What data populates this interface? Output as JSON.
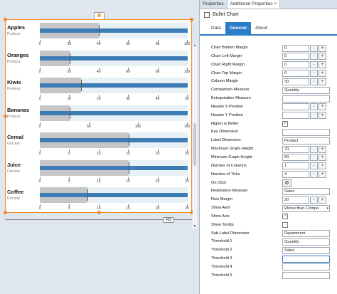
{
  "canvas": {
    "top_icon": "chart-icon",
    "ruler_label": "483",
    "chart_data": {
      "type": "bullet",
      "rows": [
        {
          "name": "Apples",
          "sub": "Produce",
          "max": 100,
          "ticks": [
            "0",
            "20",
            "40",
            "60",
            "80",
            "100"
          ],
          "band": 40,
          "perf": 100,
          "target": 40
        },
        {
          "name": "Oranges",
          "sub": "Produce",
          "max": 100,
          "ticks": [
            "0",
            "20",
            "40",
            "60",
            "80",
            "100"
          ],
          "band": 20,
          "perf": 100,
          "target": 20
        },
        {
          "name": "Kiwis",
          "sub": "Produce",
          "max": 50,
          "ticks": [
            "0",
            "10",
            "20",
            "30",
            "40",
            "50"
          ],
          "band": 14,
          "perf": 50,
          "target": 14
        },
        {
          "name": "Bananas",
          "sub": "Produce",
          "max": 150,
          "ticks": [
            "0",
            "50",
            "100",
            "150"
          ],
          "band": 30,
          "perf": 150,
          "target": 30
        },
        {
          "name": "Cereal",
          "sub": "Grocery",
          "max": 25,
          "ticks": [
            "0",
            "5",
            "10",
            "15",
            "20",
            "25"
          ],
          "band": 15,
          "perf": 25,
          "target": 15
        },
        {
          "name": "Juice",
          "sub": "Grocery",
          "max": 25,
          "ticks": [
            "0",
            "5",
            "10",
            "15",
            "20",
            "25"
          ],
          "band": 15,
          "perf": 25,
          "target": 15
        },
        {
          "name": "Coffee",
          "sub": "Grocery",
          "max": 25,
          "ticks": [
            "0",
            "5",
            "10",
            "15",
            "20",
            "25"
          ],
          "band": 8,
          "perf": 25,
          "target": 8
        }
      ]
    }
  },
  "panel": {
    "view_tabs": [
      "Properties",
      "Additional Properties"
    ],
    "view_tab_close": "×",
    "title": "Bullet Chart",
    "tabs": [
      "Data",
      "General",
      "About"
    ],
    "colors": {
      "accent": "#2c7cc7",
      "perf": "#3e7cb6",
      "band": "#c6c6c6"
    },
    "props": [
      {
        "label": "Chart Bottom Margin",
        "type": "num",
        "value": "0"
      },
      {
        "label": "Chart Left Margin",
        "type": "num",
        "value": "0"
      },
      {
        "label": "Chart Right Margin",
        "type": "num",
        "value": "0"
      },
      {
        "label": "Chart Top Margin",
        "type": "num",
        "value": "0"
      },
      {
        "label": "Column Margin",
        "type": "num",
        "value": "30"
      },
      {
        "label": "Comparison Measure",
        "type": "text",
        "value": "Quantity"
      },
      {
        "label": "Extrapolation Measure",
        "type": "text",
        "value": ""
      },
      {
        "label": "Header X Position",
        "type": "num",
        "value": ""
      },
      {
        "label": "Header Y Position",
        "type": "num",
        "value": ""
      },
      {
        "label": "Higher is Better",
        "type": "check",
        "value": "✓"
      },
      {
        "label": "Key Dimension",
        "type": "text",
        "value": ""
      },
      {
        "label": "Label Dimension",
        "type": "text",
        "value": "Product"
      },
      {
        "label": "Maximum Graph Height",
        "type": "num",
        "value": "70"
      },
      {
        "label": "Minimum Graph Height",
        "type": "num",
        "value": "50"
      },
      {
        "label": "Number of Columns",
        "type": "num",
        "value": "1"
      },
      {
        "label": "Number of Ticks",
        "type": "num",
        "value": "4"
      },
      {
        "label": "On Click",
        "type": "color",
        "value": "⚙"
      },
      {
        "label": "Realization Measure",
        "type": "text",
        "value": "Sales"
      },
      {
        "label": "Row Margin",
        "type": "num",
        "value": "20"
      },
      {
        "label": "Show Alert",
        "type": "select",
        "value": "Worse than Compa"
      },
      {
        "label": "Show Axis",
        "type": "check",
        "value": "✓"
      },
      {
        "label": "Show Tooltip",
        "type": "check",
        "value": ""
      },
      {
        "label": "Sub-Label Dimension",
        "type": "text",
        "value": "Department"
      },
      {
        "label": "Threshold 1",
        "type": "text",
        "value": "Quantity"
      },
      {
        "label": "Threshold 2",
        "type": "text",
        "value": "Sales"
      },
      {
        "label": "Threshold 3",
        "type": "text",
        "value": "",
        "focus": true
      },
      {
        "label": "Threshold 4",
        "type": "text",
        "value": ""
      },
      {
        "label": "Threshold 5",
        "type": "text",
        "value": ""
      }
    ],
    "stepper_minus": "-",
    "stepper_plus": "+",
    "select_arrow": "▾"
  }
}
